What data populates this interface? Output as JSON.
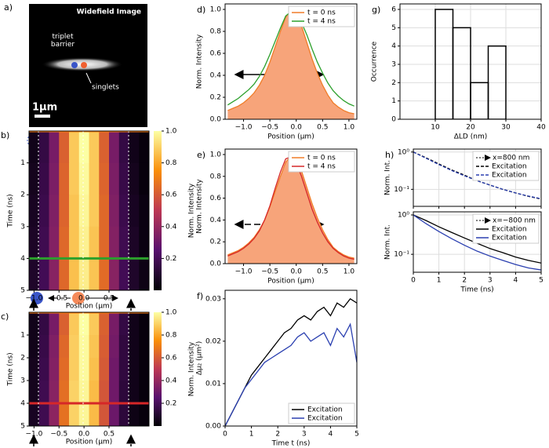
{
  "image_panel": {
    "panel": "a)",
    "title": "Widefield Image",
    "barrier_label": "triplet barrier",
    "singlet_label": "singlets",
    "scale_bar": "1µm"
  },
  "chart_data": [
    {
      "type": "heatmap",
      "panel": "b)",
      "x": [
        -1.0,
        -0.8,
        -0.6,
        -0.4,
        -0.2,
        0.0,
        0.2,
        0.4,
        0.6,
        0.8,
        1.0,
        1.2
      ],
      "y": [
        0.5,
        1.5,
        2.5,
        3.5,
        4.5
      ],
      "values": [
        [
          0.05,
          0.15,
          0.33,
          0.62,
          0.88,
          1.0,
          0.88,
          0.62,
          0.33,
          0.15,
          0.05,
          0.02
        ],
        [
          0.06,
          0.16,
          0.34,
          0.63,
          0.88,
          0.99,
          0.88,
          0.63,
          0.34,
          0.16,
          0.06,
          0.02
        ],
        [
          0.07,
          0.17,
          0.35,
          0.63,
          0.87,
          0.98,
          0.88,
          0.64,
          0.35,
          0.17,
          0.07,
          0.03
        ],
        [
          0.08,
          0.18,
          0.36,
          0.64,
          0.87,
          0.97,
          0.87,
          0.64,
          0.36,
          0.18,
          0.08,
          0.03
        ],
        [
          0.09,
          0.19,
          0.37,
          0.64,
          0.86,
          0.96,
          0.87,
          0.65,
          0.37,
          0.19,
          0.09,
          0.04
        ]
      ],
      "xlim": [
        -1.1,
        1.3
      ],
      "ylim": [
        5,
        0
      ],
      "xticks": [
        {
          "value": -1.0,
          "label": "−1.0"
        },
        {
          "value": -0.5,
          "label": "−0.5"
        },
        {
          "value": 0.0,
          "label": "0.0"
        },
        {
          "value": 0.5,
          "label": "0.5"
        }
      ],
      "yticks": [
        1,
        2,
        3,
        4,
        5
      ],
      "xlabel": "Position (µm)",
      "ylabel": "Time (ns)",
      "colorbar": {
        "label": "Norm. Intensity",
        "lim": [
          0,
          1
        ],
        "ticks": [
          0.2,
          0.4,
          0.6,
          0.8,
          {
            "value": 1,
            "label": "1.0"
          }
        ]
      },
      "hlines": [
        {
          "value": 0,
          "color": "#ff7f0e"
        },
        {
          "value": 4,
          "color": "#2ca02c"
        }
      ]
    },
    {
      "type": "heatmap",
      "panel": "c)",
      "x": [
        -1.0,
        -0.8,
        -0.6,
        -0.4,
        -0.2,
        0.0,
        0.2,
        0.4,
        0.6,
        0.8,
        1.0,
        1.2
      ],
      "y": [
        0.5,
        1.5,
        2.5,
        3.5,
        4.5
      ],
      "values": [
        [
          0.05,
          0.15,
          0.33,
          0.62,
          0.88,
          1.0,
          0.88,
          0.62,
          0.33,
          0.15,
          0.05,
          0.02
        ],
        [
          0.05,
          0.16,
          0.35,
          0.64,
          0.89,
          0.99,
          0.87,
          0.61,
          0.32,
          0.14,
          0.05,
          0.02
        ],
        [
          0.06,
          0.17,
          0.36,
          0.65,
          0.89,
          0.99,
          0.86,
          0.6,
          0.31,
          0.14,
          0.05,
          0.02
        ],
        [
          0.06,
          0.18,
          0.37,
          0.66,
          0.9,
          0.98,
          0.85,
          0.59,
          0.31,
          0.13,
          0.05,
          0.02
        ],
        [
          0.07,
          0.18,
          0.38,
          0.67,
          0.9,
          0.98,
          0.85,
          0.59,
          0.3,
          0.13,
          0.04,
          0.02
        ]
      ],
      "xlim": [
        -1.1,
        1.3
      ],
      "ylim": [
        5,
        0
      ],
      "xticks": [
        {
          "value": -1.0,
          "label": "−1.0"
        },
        {
          "value": -0.5,
          "label": "−0.5"
        },
        {
          "value": 0.0,
          "label": "0.0"
        },
        {
          "value": 0.5,
          "label": "0.5"
        }
      ],
      "yticks": [
        1,
        2,
        3,
        4,
        5
      ],
      "xlabel": "Position (µm)",
      "ylabel": "Time (ns)",
      "colorbar": {
        "label": "Norm. Intensity",
        "lim": [
          0,
          1
        ],
        "ticks": [
          0.2,
          0.4,
          0.6,
          0.8,
          {
            "value": 1,
            "label": "1.0"
          }
        ]
      },
      "hlines": [
        {
          "value": 0,
          "color": "#ff7f0e"
        },
        {
          "value": 4,
          "color": "#d62728"
        }
      ]
    },
    {
      "type": "line",
      "panel": "d)",
      "x": [
        -1.3,
        -1.2,
        -1.1,
        -1.0,
        -0.9,
        -0.8,
        -0.7,
        -0.6,
        -0.5,
        -0.4,
        -0.3,
        -0.2,
        -0.1,
        0.0,
        0.1,
        0.2,
        0.3,
        0.4,
        0.5,
        0.6,
        0.7,
        0.8,
        0.9,
        1.0,
        1.1
      ],
      "series": [
        {
          "name": "t = 0 ns",
          "color": "#f07c28",
          "fill": "#f7a47a",
          "values": [
            0.08,
            0.1,
            0.12,
            0.15,
            0.19,
            0.24,
            0.31,
            0.4,
            0.52,
            0.66,
            0.8,
            0.93,
            0.99,
            0.96,
            0.85,
            0.7,
            0.55,
            0.42,
            0.31,
            0.22,
            0.15,
            0.11,
            0.08,
            0.06,
            0.05
          ]
        },
        {
          "name": "t = 4 ns",
          "color": "#2ca02c",
          "values": [
            0.13,
            0.16,
            0.19,
            0.23,
            0.27,
            0.32,
            0.39,
            0.48,
            0.59,
            0.71,
            0.83,
            0.94,
            0.98,
            0.96,
            0.88,
            0.77,
            0.64,
            0.52,
            0.42,
            0.33,
            0.26,
            0.21,
            0.17,
            0.14,
            0.12
          ]
        }
      ],
      "xlim": [
        -1.35,
        1.15
      ],
      "ylim": [
        0,
        1.05
      ],
      "xticks": [
        {
          "value": -1.0,
          "label": "−1.0"
        },
        {
          "value": -0.5,
          "label": "−0.5"
        },
        {
          "value": 0.0,
          "label": "0.0"
        },
        {
          "value": 0.5,
          "label": "0.5"
        },
        {
          "value": 1.0,
          "label": "1.0"
        }
      ],
      "yticks": [
        {
          "value": 0,
          "label": "0.0"
        },
        0.2,
        0.4,
        0.6,
        0.8,
        {
          "value": 1,
          "label": "1.0"
        }
      ],
      "xlabel": "Position (µm)",
      "ylabel": "Norm. Intensity",
      "legend": "upper right",
      "grid": false
    },
    {
      "type": "line",
      "panel": "e)",
      "x": [
        -1.3,
        -1.2,
        -1.1,
        -1.0,
        -0.9,
        -0.8,
        -0.7,
        -0.6,
        -0.5,
        -0.4,
        -0.3,
        -0.2,
        -0.1,
        0.0,
        0.1,
        0.2,
        0.3,
        0.4,
        0.5,
        0.6,
        0.7,
        0.8,
        0.9,
        1.0,
        1.1
      ],
      "series": [
        {
          "name": "t = 0 ns",
          "color": "#f07c28",
          "fill": "#f7a47a",
          "values": [
            0.08,
            0.1,
            0.12,
            0.15,
            0.19,
            0.24,
            0.31,
            0.4,
            0.52,
            0.66,
            0.8,
            0.93,
            0.99,
            0.96,
            0.85,
            0.7,
            0.55,
            0.42,
            0.31,
            0.22,
            0.15,
            0.11,
            0.08,
            0.06,
            0.05
          ]
        },
        {
          "name": "t = 4 ns",
          "color": "#d62728",
          "values": [
            0.07,
            0.09,
            0.11,
            0.14,
            0.18,
            0.23,
            0.3,
            0.4,
            0.53,
            0.69,
            0.84,
            0.96,
            0.98,
            0.92,
            0.8,
            0.65,
            0.5,
            0.38,
            0.28,
            0.2,
            0.14,
            0.1,
            0.07,
            0.05,
            0.04
          ]
        }
      ],
      "xlim": [
        -1.35,
        1.15
      ],
      "ylim": [
        0,
        1.05
      ],
      "xticks": [
        {
          "value": -1.0,
          "label": "−1.0"
        },
        {
          "value": -0.5,
          "label": "−0.5"
        },
        {
          "value": 0.0,
          "label": "0.0"
        },
        {
          "value": 0.5,
          "label": "0.5"
        },
        {
          "value": 1.0,
          "label": "1.0"
        }
      ],
      "yticks": [
        {
          "value": 0,
          "label": "0.0"
        },
        0.2,
        0.4,
        0.6,
        0.8,
        {
          "value": 1,
          "label": "1.0"
        }
      ],
      "xlabel": "Position (µm)",
      "ylabel": "Norm. Intensity",
      "legend": "upper right",
      "grid": false
    },
    {
      "type": "line",
      "panel": "f)",
      "x": [
        0,
        0.25,
        0.5,
        0.75,
        1,
        1.25,
        1.5,
        1.75,
        2,
        2.25,
        2.5,
        2.75,
        3,
        3.25,
        3.5,
        3.75,
        4,
        4.25,
        4.5,
        4.75,
        5
      ],
      "series": [
        {
          "name": "Excitation",
          "color": "#000000",
          "values": [
            0,
            0.003,
            0.006,
            0.009,
            0.012,
            0.014,
            0.016,
            0.018,
            0.02,
            0.022,
            0.023,
            0.025,
            0.026,
            0.025,
            0.027,
            0.028,
            0.026,
            0.029,
            0.028,
            0.03,
            0.029
          ]
        },
        {
          "name": "Excitation",
          "color": "#2a3fb0",
          "values": [
            0,
            0.003,
            0.006,
            0.009,
            0.011,
            0.013,
            0.015,
            0.016,
            0.017,
            0.018,
            0.019,
            0.021,
            0.022,
            0.02,
            0.021,
            0.022,
            0.019,
            0.023,
            0.021,
            0.024,
            0.015
          ]
        }
      ],
      "xlim": [
        0,
        5
      ],
      "ylim": [
        0,
        0.032
      ],
      "xticks": [
        0,
        1,
        2,
        3,
        4,
        5
      ],
      "yticks": [
        {
          "value": 0,
          "label": "0.00"
        },
        0.01,
        0.02,
        0.03
      ],
      "xlabel": "Time t (ns)",
      "ylabel": "Δµ₂ (µm²)",
      "legend": "lower right",
      "grid": false
    },
    {
      "type": "histogram",
      "panel": "g)",
      "bins": [
        10,
        15,
        20,
        25,
        30
      ],
      "values": [
        6,
        5,
        2,
        4
      ],
      "color": "#000000",
      "xlim": [
        0,
        40
      ],
      "ylim": [
        0,
        6.3
      ],
      "xticks": [
        10,
        20,
        30,
        40
      ],
      "yticks": [
        0,
        1,
        2,
        3,
        4,
        5,
        6
      ],
      "xlabel": "ΔLD (nm)",
      "ylabel": "Occurrence",
      "grid": true
    },
    {
      "type": "line",
      "panel": "h)",
      "log_y": true,
      "tick_labels_x": false,
      "x": [
        0,
        0.5,
        1,
        1.5,
        2,
        2.5,
        3,
        3.5,
        4,
        4.5,
        5
      ],
      "series": [
        {
          "name": "Excitation",
          "color": "#000000",
          "dash": true,
          "values": [
            1.0,
            0.7,
            0.48,
            0.33,
            0.24,
            0.17,
            0.13,
            0.1,
            0.08,
            0.065,
            0.055
          ]
        },
        {
          "name": "Excitation",
          "color": "#2a3fb0",
          "dash": true,
          "values": [
            1.0,
            0.68,
            0.46,
            0.32,
            0.23,
            0.17,
            0.13,
            0.1,
            0.08,
            0.066,
            0.056
          ]
        }
      ],
      "xlim": [
        0,
        5
      ],
      "ylim": [
        0.035,
        1.2
      ],
      "xticks": [
        0,
        1,
        2,
        3,
        4,
        5
      ],
      "yticks": [
        {
          "value": 1,
          "label": "10⁰"
        },
        {
          "value": 0.1,
          "label": "10⁻¹"
        }
      ],
      "ylabel": "Norm. Int.",
      "legend_title": "x=800 nm",
      "legend": "upper right",
      "grid": true
    },
    {
      "type": "line",
      "log_y": true,
      "x": [
        0,
        0.5,
        1,
        1.5,
        2,
        2.5,
        3,
        3.5,
        4,
        4.5,
        5
      ],
      "series": [
        {
          "name": "Excitation",
          "color": "#000000",
          "values": [
            1.0,
            0.72,
            0.5,
            0.36,
            0.26,
            0.19,
            0.14,
            0.11,
            0.085,
            0.07,
            0.06
          ]
        },
        {
          "name": "Excitation",
          "color": "#2a3fb0",
          "values": [
            1.0,
            0.6,
            0.38,
            0.25,
            0.17,
            0.12,
            0.09,
            0.07,
            0.055,
            0.045,
            0.04
          ]
        }
      ],
      "xlim": [
        0,
        5
      ],
      "ylim": [
        0.035,
        1.2
      ],
      "xticks": [
        0,
        1,
        2,
        3,
        4,
        5
      ],
      "yticks": [
        {
          "value": 1,
          "label": "10⁰"
        },
        {
          "value": 0.1,
          "label": "10⁻¹"
        }
      ],
      "xlabel": "Time (ns)",
      "ylabel": "Norm. Int.",
      "legend_title": "x=−800 nm",
      "legend": "upper right",
      "grid": true
    }
  ]
}
